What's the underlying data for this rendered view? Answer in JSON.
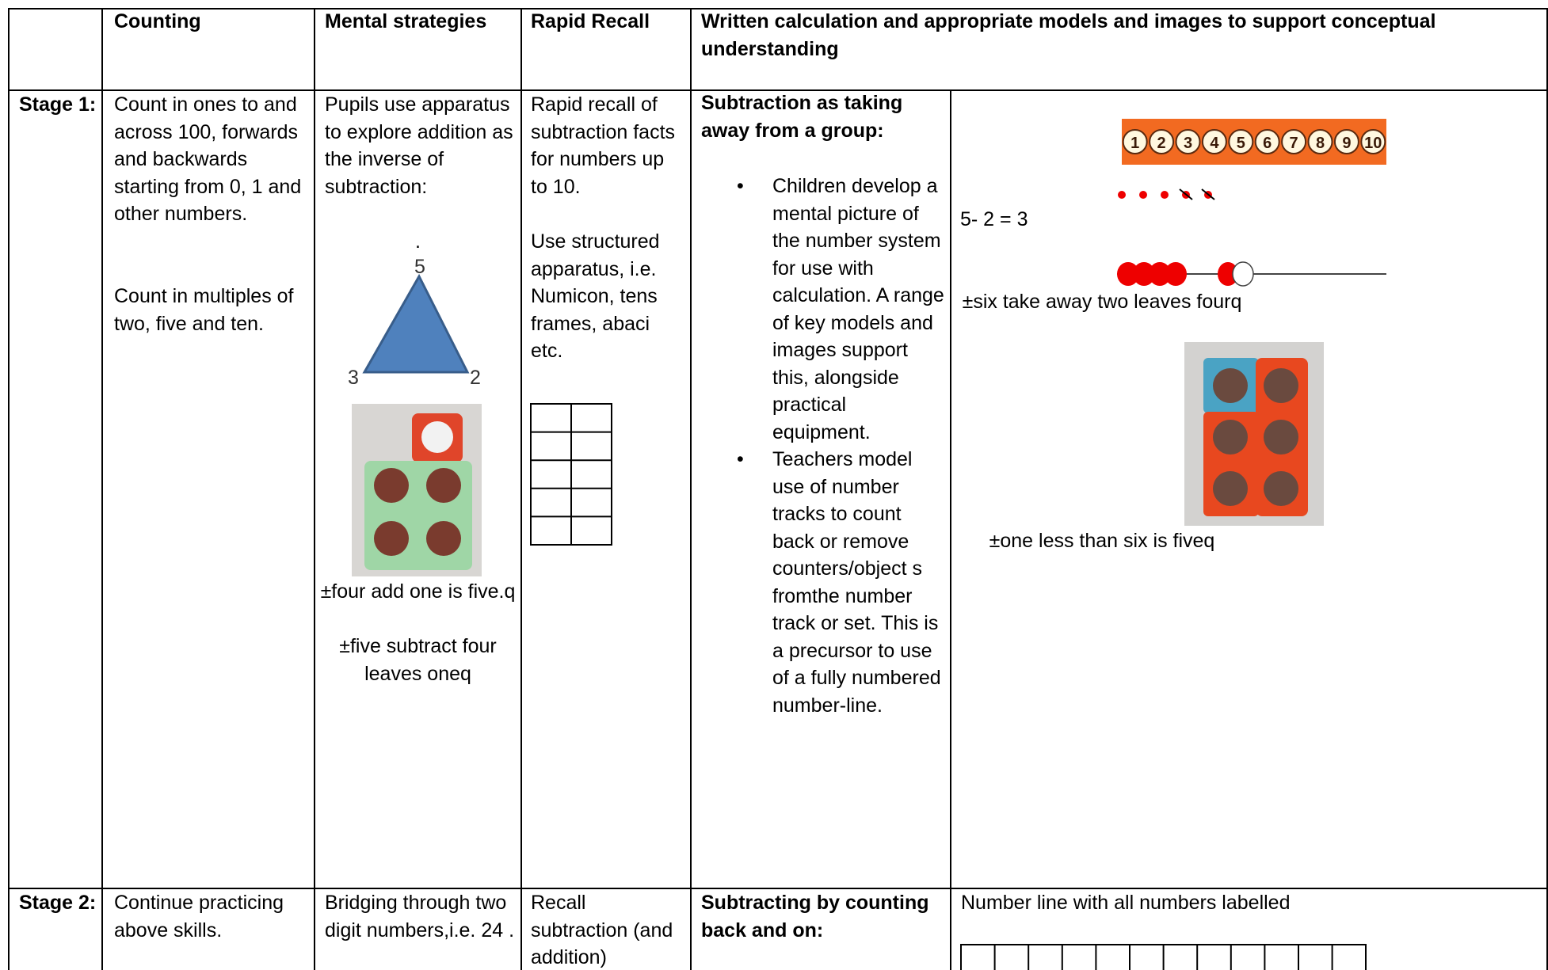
{
  "table": {
    "header": [
      "Counting",
      "Mental strategies",
      "Rapid Recall",
      "Written calculation and appropriate models and images to support conceptual understanding"
    ],
    "rows": [
      {
        "stage": "Stage 1:",
        "counting": [
          "Count in ones to and across 100, forwards and backwards starting from 0, 1 and other numbers.",
          "Count in multiples of two, five and ten."
        ],
        "mental": {
          "text": "Pupils use apparatus to explore addition as the inverse of subtraction:",
          "dot": ".",
          "triangle": [
            "5",
            "3",
            "2"
          ],
          "captions": [
            "±four add one is five.q",
            "±five subtract four leaves oneq"
          ]
        },
        "rapid": [
          "Rapid recall of subtraction facts for numbers up to 10.",
          "Use structured apparatus, i.e. Numicon, tens frames, abaci etc."
        ],
        "written": {
          "heading": "Subtraction as taking away from a group:",
          "bullets": [
            "Children develop a mental picture of the number system for use with calculation. A range of key models and images support this, alongside practical equipment.",
            "Teachers model use of number tracks to count back or remove counters/object s fromthe number track or set. This is a precursor to use of a fully numbered number-line."
          ]
        },
        "models": {
          "number_track": [
            1,
            2,
            3,
            4,
            5,
            6,
            7,
            8,
            9,
            10
          ],
          "equation": "5- 2 = 3",
          "captions": [
            "±six take away two leaves fourq",
            "±one less than six is fiveq"
          ]
        }
      },
      {
        "stage": "Stage 2:",
        "counting": [
          "Continue practicing above skills."
        ],
        "mental": {
          "text": "Bridging through two digit numbers,i.e. 24 ."
        },
        "rapid": [
          "Recall subtraction (and addition)"
        ],
        "written": {
          "heading": "Subtracting by counting back and on:"
        },
        "models": {
          "text": "Number line with all numbers labelled"
        }
      }
    ]
  }
}
